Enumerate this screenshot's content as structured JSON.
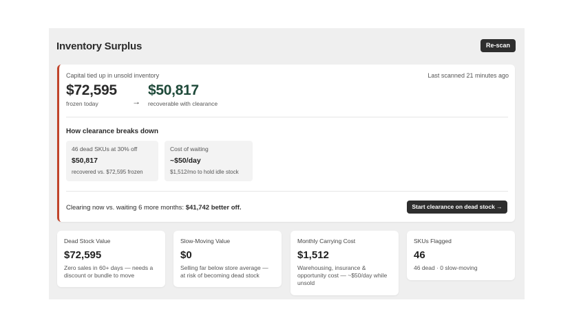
{
  "header": {
    "title": "Inventory Surplus",
    "rescan_label": "Re-scan"
  },
  "summary": {
    "capital_label": "Capital tied up in unsold inventory",
    "last_scanned": "Last scanned 21 minutes ago",
    "frozen_value": "$72,595",
    "frozen_label": "frozen today",
    "arrow": "→",
    "recoverable_value": "$50,817",
    "recoverable_label": "recoverable with clearance"
  },
  "breakdown": {
    "title": "How clearance breaks down",
    "items": [
      {
        "label": "46 dead SKUs at 30% off",
        "value": "$50,817",
        "sub": "recovered vs. $72,595 frozen"
      },
      {
        "label": "Cost of waiting",
        "value": "~$50/day",
        "sub": "$1,512/mo to hold idle stock"
      }
    ]
  },
  "clearance": {
    "text_prefix": "Clearing now vs. waiting 6 more months: ",
    "text_bold": "$41,742 better off.",
    "button_label": "Start clearance on dead stock →"
  },
  "stats": [
    {
      "label": "Dead Stock Value",
      "value": "$72,595",
      "sub": "Zero sales in 60+ days — needs a discount or bundle to move"
    },
    {
      "label": "Slow-Moving Value",
      "value": "$0",
      "sub": "Selling far below store average — at risk of becoming dead stock"
    },
    {
      "label": "Monthly Carrying Cost",
      "value": "$1,512",
      "sub": "Warehousing, insurance & opportunity cost — ~$50/day while unsold"
    },
    {
      "label": "SKUs Flagged",
      "value": "46",
      "sub": "46 dead · 0 slow-moving"
    }
  ],
  "colors": {
    "accent_border": "#c0442a",
    "recoverable_green": "#1f4a3a",
    "button_dark": "#2e2e2e"
  }
}
